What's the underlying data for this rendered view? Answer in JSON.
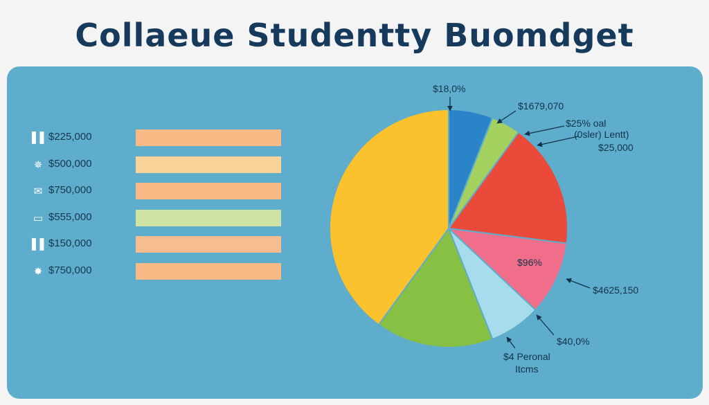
{
  "title": "Collaeue Studentty Buomdget",
  "colors": {
    "panel": "#5eadcc",
    "title": "#163a5c"
  },
  "chart_data": [
    {
      "type": "bar",
      "orientation": "horizontal",
      "categories": [
        "$225,000",
        "$500,000",
        "$750,000",
        "$555,000",
        "$150,000",
        "$750,000"
      ],
      "icons": [
        "books-icon",
        "badge-icon",
        "envelope-icon",
        "card-icon",
        "books-icon",
        "compass-icon"
      ],
      "colors": [
        "#f7ba85",
        "#f9d39a",
        "#f7ba85",
        "#cfe3a4",
        "#f7bc8f",
        "#f7ba85"
      ]
    },
    {
      "type": "pie",
      "slices": [
        {
          "label": "$18,0%",
          "value": 6,
          "color": "#2a84c7"
        },
        {
          "label": "$1679,070",
          "value": 4,
          "color": "#a5d160"
        },
        {
          "label": "$25,000",
          "value": 17,
          "color": "#e94a3a"
        },
        {
          "label": "$96%",
          "value": 10,
          "color": "#f06e8a"
        },
        {
          "label": "$40,0%",
          "value": 7,
          "color": "#a6dceb"
        },
        {
          "label": "$4 Personal Items",
          "value": 16,
          "color": "#88c043"
        },
        {
          "label": "",
          "value": 40,
          "color": "#fcc22d"
        }
      ],
      "annotations": [
        {
          "name": "callout-top",
          "text": "$18,0%"
        },
        {
          "name": "callout-lime",
          "text": "$1679,070"
        },
        {
          "name": "callout-red-1",
          "text": "$25% oal"
        },
        {
          "name": "callout-red-2",
          "text": "(0sler) Lentt)"
        },
        {
          "name": "callout-red-3",
          "text": "$25,000"
        },
        {
          "name": "callout-pink-inner",
          "text": "$96%"
        },
        {
          "name": "callout-pink-outer",
          "text": "$4625,150"
        },
        {
          "name": "callout-light",
          "text": "$40,0%"
        },
        {
          "name": "callout-green-1",
          "text": "$4 Peronal"
        },
        {
          "name": "callout-green-2",
          "text": "Itcms"
        }
      ]
    }
  ]
}
